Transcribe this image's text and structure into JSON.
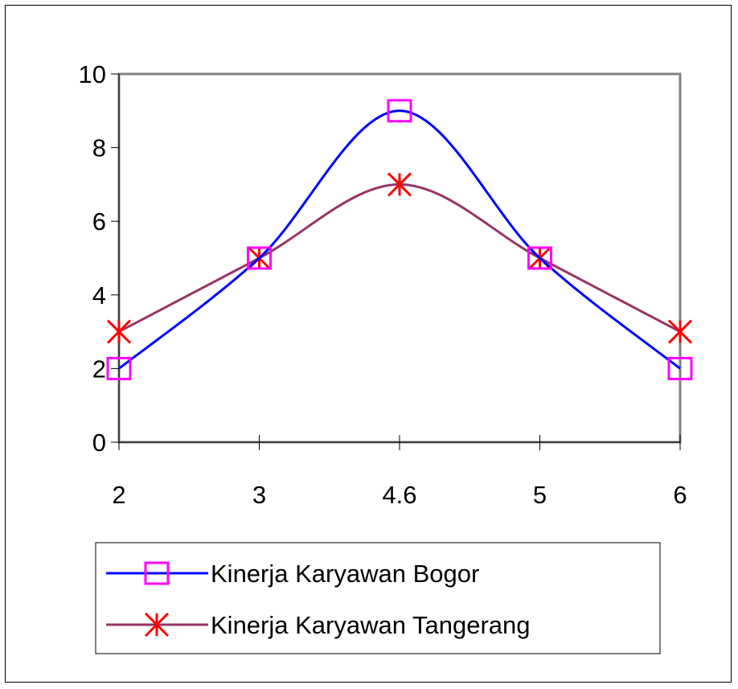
{
  "chart_data": {
    "type": "line",
    "title": "",
    "xlabel": "",
    "ylabel": "",
    "categories": [
      "2",
      "3",
      "4.6",
      "5",
      "6"
    ],
    "ylim": [
      0,
      10
    ],
    "yticks": [
      0,
      2,
      4,
      6,
      8,
      10
    ],
    "grid": false,
    "smooth": true,
    "legend_position": "bottom",
    "series": [
      {
        "name": "Kinerja Karyawan Bogor",
        "values": [
          2,
          5,
          9,
          5,
          2
        ],
        "line_color": "#0000FF",
        "marker": "square",
        "marker_color": "#FF00FF"
      },
      {
        "name": "Kinerja Karyawan Tangerang",
        "values": [
          3,
          5,
          7,
          5,
          3
        ],
        "line_color": "#993366",
        "marker": "asterisk",
        "marker_color": "#FF0000"
      }
    ]
  }
}
